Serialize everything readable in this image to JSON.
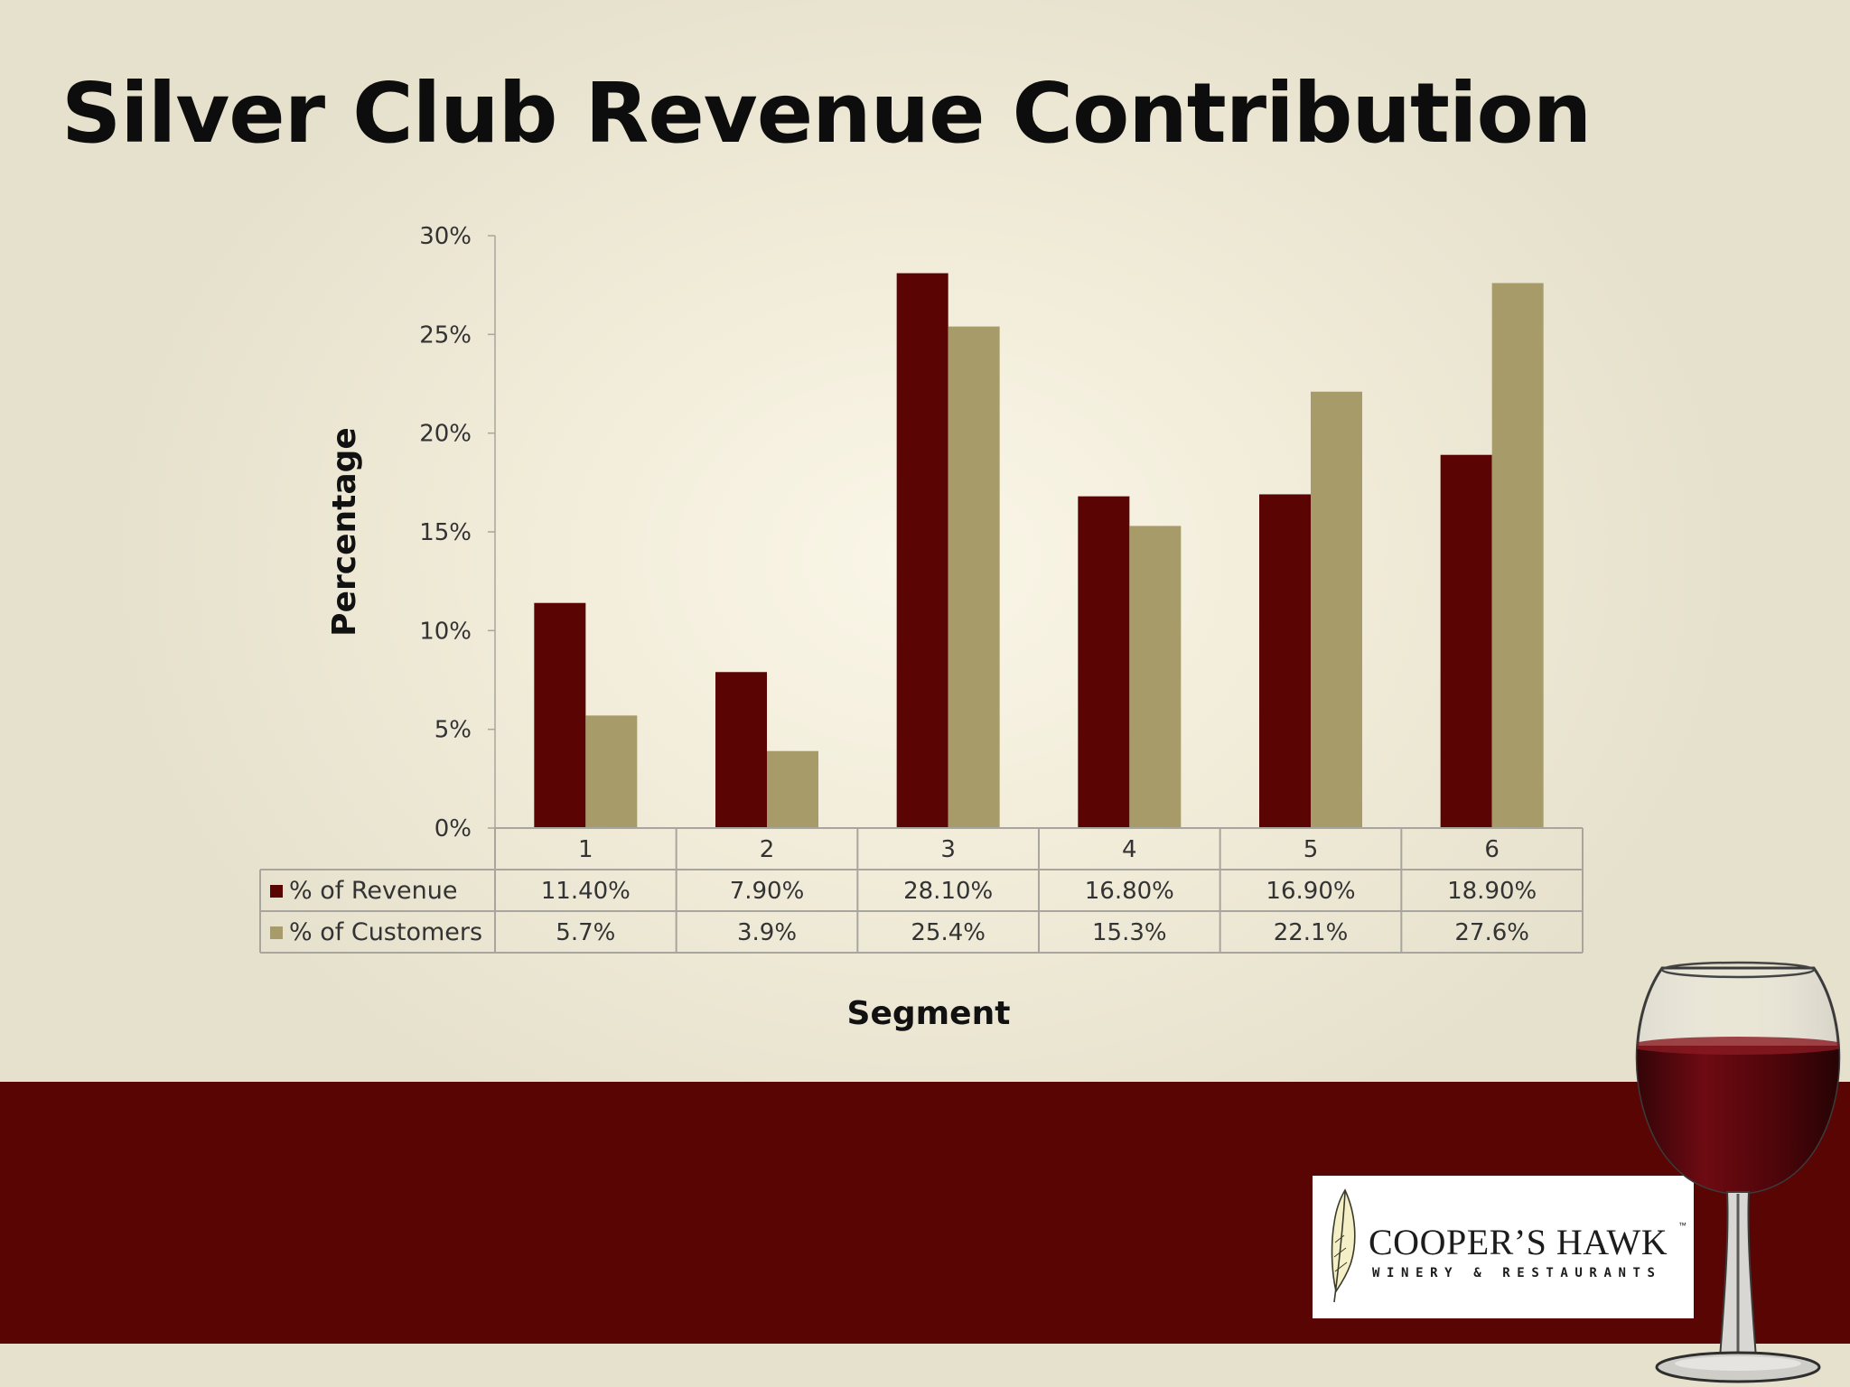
{
  "slide": {
    "title": "Silver Club Revenue Contribution"
  },
  "chart_data": {
    "type": "bar",
    "title": "",
    "xlabel": "Segment",
    "ylabel": "Percentage",
    "ylim": [
      0,
      30
    ],
    "yticks": [
      "0%",
      "5%",
      "10%",
      "15%",
      "20%",
      "25%",
      "30%"
    ],
    "categories": [
      "1",
      "2",
      "3",
      "4",
      "5",
      "6"
    ],
    "grid": false,
    "legend": "data-table",
    "series": [
      {
        "name": "% of Revenue",
        "color": "#5a0503",
        "values": [
          11.4,
          7.9,
          28.1,
          16.8,
          16.9,
          18.9
        ],
        "labels": [
          "11.40%",
          "7.90%",
          "28.10%",
          "16.80%",
          "16.90%",
          "18.90%"
        ]
      },
      {
        "name": "% of  Customers",
        "color": "#a89b6a",
        "values": [
          5.7,
          3.9,
          25.4,
          15.3,
          22.1,
          27.6
        ],
        "labels": [
          "5.7%",
          "3.9%",
          "25.4%",
          "15.3%",
          "22.1%",
          "27.6%"
        ]
      }
    ]
  },
  "logo": {
    "name": "COOPER’S HAWK",
    "tm": "™",
    "tagline": "WINERY & RESTAURANTS"
  },
  "colors": {
    "band": "#580503",
    "revenue": "#5a0503",
    "customers": "#a89b6a"
  },
  "icons": [
    "feather-icon",
    "wine-glass-icon"
  ]
}
